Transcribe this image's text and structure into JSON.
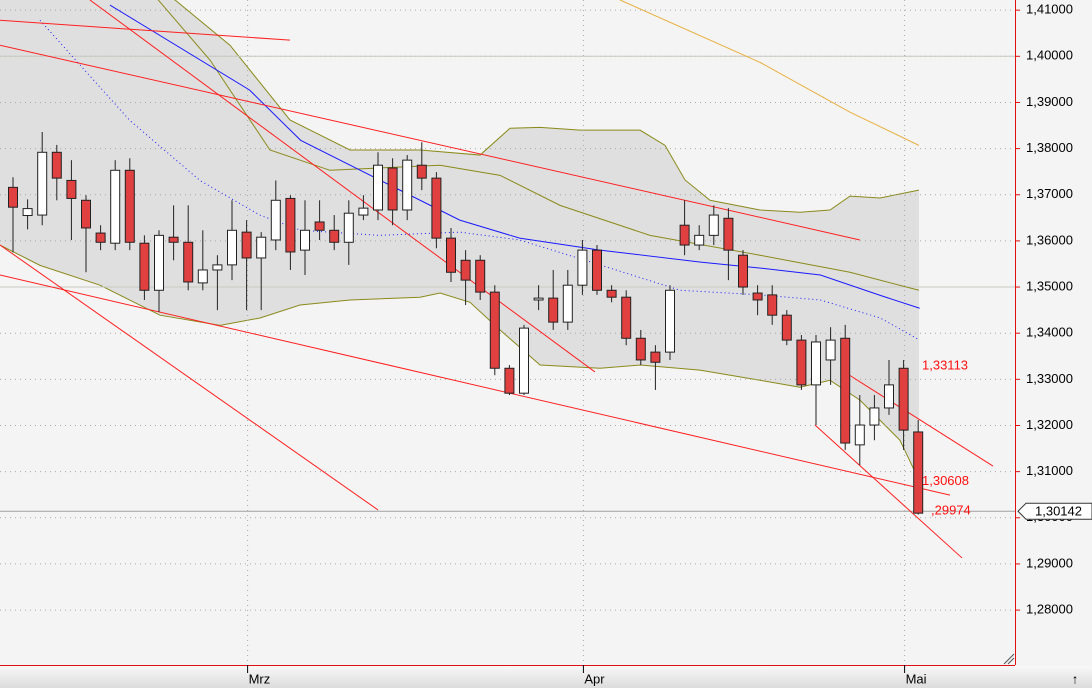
{
  "chart_data": {
    "type": "candlestick",
    "categories": [
      null,
      null,
      null,
      null,
      null,
      null,
      null,
      null,
      null,
      null,
      null,
      null,
      null,
      null,
      null,
      null,
      "Mrz",
      null,
      null,
      null,
      null,
      null,
      null,
      null,
      null,
      null,
      null,
      null,
      null,
      null,
      null,
      null,
      null,
      null,
      null,
      null,
      null,
      null,
      null,
      "Apr",
      null,
      null,
      null,
      null,
      null,
      null,
      null,
      null,
      null,
      null,
      null,
      null,
      null,
      null,
      null,
      null,
      null,
      null,
      null,
      null,
      null,
      "Mai",
      null
    ],
    "open": [
      1.3716,
      1.3655,
      1.3656,
      1.3792,
      1.3731,
      1.3688,
      1.3617,
      1.3595,
      1.3753,
      1.3595,
      1.3493,
      1.3608,
      1.3597,
      1.3509,
      1.3537,
      1.3548,
      1.3619,
      1.3563,
      1.3602,
      1.3692,
      1.358,
      1.3641,
      1.3623,
      1.3597,
      1.3656,
      1.3667,
      1.3758,
      1.3667,
      1.3764,
      1.3736,
      1.3606,
      1.3558,
      1.3558,
      1.3489,
      1.3324,
      1.327,
      1.3472,
      1.3476,
      1.3424,
      1.3504,
      1.358,
      1.3493,
      1.3478,
      1.3389,
      1.3359,
      1.3359,
      1.3634,
      1.3591,
      1.3612,
      1.3649,
      1.3569,
      1.3487,
      1.3483,
      1.3439,
      1.3385,
      1.3288,
      1.3342,
      1.3389,
      1.3158,
      1.3201,
      1.3238,
      1.3324,
      1.3186
    ],
    "high": [
      1.3738,
      1.369,
      1.3836,
      1.3808,
      1.3775,
      1.3699,
      1.3634,
      1.3775,
      1.3779,
      1.3612,
      1.3623,
      1.3677,
      1.3677,
      1.3623,
      1.3569,
      1.3688,
      1.3645,
      1.3619,
      1.3731,
      1.3699,
      1.3688,
      1.3688,
      1.3656,
      1.3688,
      1.3699,
      1.3792,
      1.3779,
      1.3786,
      1.3814,
      1.3749,
      1.3628,
      1.358,
      1.3569,
      1.3504,
      1.3331,
      1.3418,
      1.3504,
      1.3537,
      1.3537,
      1.3602,
      1.3591,
      1.3504,
      1.3493,
      1.3407,
      1.3374,
      1.3504,
      1.3688,
      1.3634,
      1.3677,
      1.3671,
      1.358,
      1.3504,
      1.3504,
      1.345,
      1.3396,
      1.3396,
      1.3413,
      1.3418,
      1.3266,
      1.3266,
      1.3342,
      1.3342,
      1.3212
    ],
    "low": [
      1.3575,
      1.3625,
      1.3634,
      1.3688,
      1.3602,
      1.3532,
      1.358,
      1.358,
      1.358,
      1.3472,
      1.3446,
      1.3558,
      1.3493,
      1.3493,
      1.345,
      1.3515,
      1.345,
      1.345,
      1.358,
      1.3537,
      1.3526,
      1.3602,
      1.358,
      1.3548,
      1.3645,
      1.3645,
      1.3634,
      1.3645,
      1.371,
      1.3584,
      1.3511,
      1.3461,
      1.3472,
      1.3309,
      1.3266,
      1.3266,
      1.345,
      1.3407,
      1.3407,
      1.3483,
      1.3483,
      1.3467,
      1.3374,
      1.3331,
      1.3277,
      1.3342,
      1.3569,
      1.358,
      1.3591,
      1.3515,
      1.3483,
      1.3439,
      1.3418,
      1.3374,
      1.3277,
      1.3201,
      1.3288,
      1.3147,
      1.3114,
      1.3168,
      1.3223,
      1.3147,
      1.3007
    ],
    "close": [
      1.3673,
      1.367,
      1.3792,
      1.3736,
      1.3692,
      1.3628,
      1.3597,
      1.3753,
      1.3597,
      1.3493,
      1.3612,
      1.3597,
      1.3511,
      1.3537,
      1.3548,
      1.3623,
      1.3563,
      1.3608,
      1.3688,
      1.3576,
      1.3623,
      1.3623,
      1.3597,
      1.366,
      1.3671,
      1.3764,
      1.3667,
      1.3775,
      1.3736,
      1.3606,
      1.3532,
      1.3515,
      1.3489,
      1.3324,
      1.327,
      1.3411,
      1.3476,
      1.3424,
      1.3504,
      1.358,
      1.3493,
      1.3478,
      1.3389,
      1.3342,
      1.3337,
      1.3493,
      1.3591,
      1.3612,
      1.3656,
      1.358,
      1.35,
      1.3472,
      1.3439,
      1.3385,
      1.3288,
      1.3381,
      1.3385,
      1.3162,
      1.3201,
      1.3238,
      1.3288,
      1.319,
      1.301
    ],
    "up_color": "#ffffff",
    "down_color": "#e04040",
    "ylim": [
      1.2681,
      1.4122
    ],
    "yticks": [
      {
        "value": 1.41,
        "label": "1,41000"
      },
      {
        "value": 1.4,
        "label": "1,40000"
      },
      {
        "value": 1.39,
        "label": "1,39000"
      },
      {
        "value": 1.38,
        "label": "1,38000"
      },
      {
        "value": 1.37,
        "label": "1,37000"
      },
      {
        "value": 1.36,
        "label": "1,36000"
      },
      {
        "value": 1.35,
        "label": "1,35000"
      },
      {
        "value": 1.34,
        "label": "1,34000"
      },
      {
        "value": 1.33,
        "label": "1,33000"
      },
      {
        "value": 1.32,
        "label": "1,32000"
      },
      {
        "value": 1.31,
        "label": "1,31000"
      },
      {
        "value": 1.3,
        "label": "1,30000"
      },
      {
        "value": 1.29,
        "label": "1,29000"
      },
      {
        "value": 1.28,
        "label": "1,28000"
      }
    ],
    "grid": true,
    "band": {
      "color": "#d8d8d8",
      "upper": {
        "x": [
          -0.89,
          5.96,
          11.1,
          14.86,
          18.97,
          23.08,
          27.88,
          31.99,
          34.04,
          36.1,
          38.84,
          42.95,
          44.66,
          46.03,
          47.74,
          51.16,
          53.9,
          55.96,
          57.33,
          59.38,
          62.05
        ],
        "values": [
          1.4447,
          1.4208,
          1.4122,
          1.4024,
          1.3862,
          1.3797,
          1.3797,
          1.3786,
          1.3844,
          1.3846,
          1.384,
          1.384,
          1.3807,
          1.3732,
          1.3688,
          1.3667,
          1.3662,
          1.3667,
          1.3697,
          1.3693,
          1.371
        ]
      },
      "lower": {
        "x": [
          -0.89,
          1.85,
          5.96,
          10.07,
          14.18,
          16.92,
          19.66,
          23.08,
          27.88,
          29.25,
          31.3,
          33.36,
          36.1,
          40.21,
          42.95,
          47.05,
          51.16,
          53.9,
          55.96,
          58.01,
          60.75,
          62.05
        ],
        "values": [
          1.3591,
          1.3547,
          1.3504,
          1.3439,
          1.3417,
          1.3433,
          1.3461,
          1.3472,
          1.3478,
          1.3487,
          1.3467,
          1.3407,
          1.3331,
          1.3324,
          1.3331,
          1.332,
          1.3298,
          1.3283,
          1.3298,
          1.3255,
          1.3168,
          1.3082
        ]
      },
      "line_color": "#8a8a1a"
    },
    "overlays": [
      {
        "color": "#8a8a1a",
        "dash": false,
        "x": [
          9.38,
          13.49,
          17.6,
          21.71,
          29.25,
          33.36,
          37.47,
          43.63,
          51.16,
          57.33,
          62.05
        ],
        "values": [
          1.4143,
          1.3992,
          1.3797,
          1.3753,
          1.3764,
          1.3742,
          1.3677,
          1.3612,
          1.3569,
          1.3532,
          1.3493
        ]
      },
      {
        "color": "#1a1aff",
        "dash": false,
        "x": [
          6.64,
          16.2,
          19.7,
          26.5,
          30.6,
          34.7,
          40.2,
          47.1,
          51.2,
          55.3,
          59.4,
          62.1
        ],
        "values": [
          1.4111,
          1.3927,
          1.3818,
          1.371,
          1.3645,
          1.3606,
          1.358,
          1.3554,
          1.3541,
          1.3526,
          1.3482,
          1.3454
        ]
      },
      {
        "color": "#1a1aff",
        "dash": true,
        "x": [
          1.85,
          8.0,
          12.8,
          16.9,
          19.7,
          25.1,
          30.6,
          34.7,
          40.2,
          45.7,
          51.2,
          55.3,
          59.4,
          62.1
        ],
        "values": [
          1.4078,
          1.3861,
          1.3731,
          1.3656,
          1.3623,
          1.3612,
          1.3619,
          1.3602,
          1.3548,
          1.3493,
          1.3483,
          1.3472,
          1.3433,
          1.3385
        ]
      },
      {
        "color": "#e8b040",
        "dash": false,
        "x": [
          41.58,
          51.16,
          57.33,
          62.05
        ],
        "values": [
          1.4122,
          1.3987,
          1.3879,
          1.3807
        ]
      },
      {
        "color": "#ff2020",
        "dash": false,
        "x": [
          -0.89,
          18.97
        ],
        "values": [
          1.4078,
          1.4035
        ]
      },
      {
        "color": "#ff2020",
        "dash": false,
        "x": [
          -0.89,
          58.01
        ],
        "values": [
          1.4024,
          1.3602
        ]
      },
      {
        "color": "#ff2020",
        "dash": false,
        "x": [
          5.27,
          39.86
        ],
        "values": [
          1.4122,
          1.3316
        ]
      },
      {
        "color": "#ff2020",
        "dash": false,
        "x": [
          -0.89,
          25.0
        ],
        "values": [
          1.3591,
          1.3017
        ]
      },
      {
        "color": "#ff2020",
        "dash": false,
        "x": [
          -0.89,
          64.18
        ],
        "values": [
          1.3526,
          1.3049
        ]
      },
      {
        "color": "#ff2020",
        "dash": false,
        "x": [
          54.93,
          65.0
        ],
        "values": [
          1.3201,
          1.2913
        ]
      },
      {
        "color": "#ff2020",
        "dash": false,
        "x": [
          57.19,
          67.12
        ],
        "values": [
          1.3311,
          1.3112
        ]
      }
    ],
    "hlines": [
      1.4,
      1.35
    ],
    "annotations": [
      {
        "value": 1.33113,
        "label": "1,33113"
      },
      {
        "value": 1.30608,
        "label": "1,30608"
      },
      {
        "value": 1.29974,
        "label": ",29974"
      }
    ],
    "last_price": {
      "value": 1.30142,
      "label": "1,30142"
    },
    "corner_symbol": "↑"
  }
}
